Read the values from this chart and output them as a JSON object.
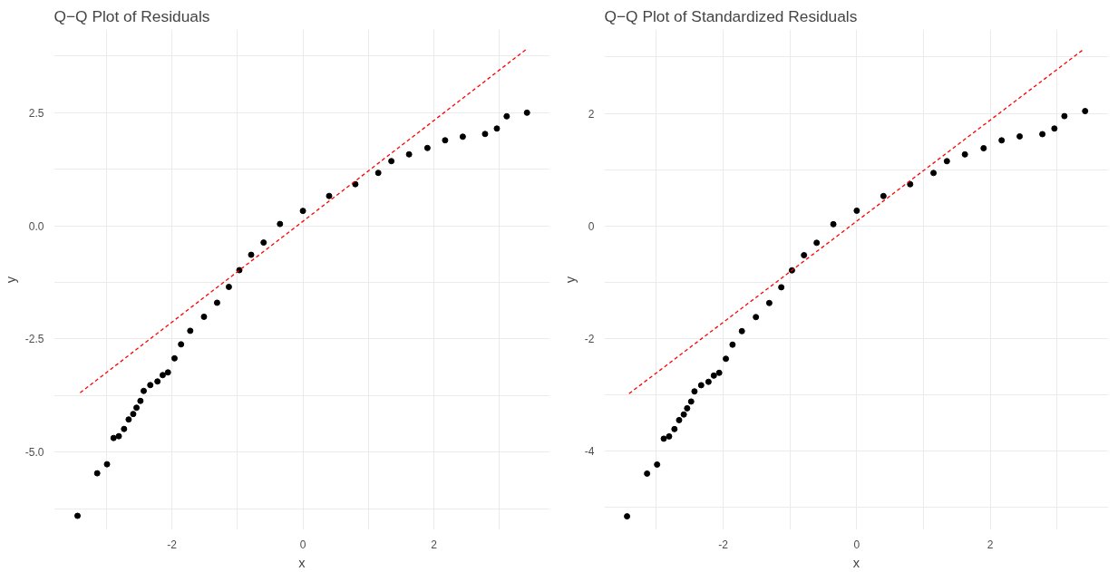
{
  "chart_data": [
    {
      "type": "scatter",
      "title": "Q−Q Plot of Residuals",
      "xlabel": "x",
      "ylabel": "y",
      "xlim": [
        -3.8,
        3.77
      ],
      "ylim": [
        -6.72,
        4.34
      ],
      "xticks": [
        {
          "value": -3,
          "label": null
        },
        -2,
        {
          "value": -1,
          "label": null
        },
        0,
        {
          "value": 1,
          "label": null
        },
        2,
        {
          "value": 3,
          "label": null
        }
      ],
      "yticks": [
        {
          "value": -6.25,
          "label": null
        },
        {
          "value": -5,
          "label": "-5.0"
        },
        {
          "value": -3.75,
          "label": null
        },
        {
          "value": -2.5,
          "label": "-2.5"
        },
        {
          "value": -1.25,
          "label": null
        },
        {
          "value": 0,
          "label": "0.0"
        },
        {
          "value": 1.25,
          "label": null
        },
        {
          "value": 2.5,
          "label": "2.5"
        },
        {
          "value": 3.75,
          "label": null
        }
      ],
      "grid": true,
      "series": [
        {
          "marker": "circle",
          "color": "#000000",
          "x": [
            -3.44,
            -3.14,
            -2.99,
            -2.89,
            -2.81,
            -2.73,
            -2.66,
            -2.59,
            -2.54,
            -2.48,
            -2.43,
            -2.33,
            -2.22,
            -2.14,
            -2.06,
            -1.96,
            -1.86,
            -1.72,
            -1.51,
            -1.31,
            -1.13,
            -0.97,
            -0.79,
            -0.6,
            -0.35,
            0,
            0.4,
            0.8,
            1.15,
            1.35,
            1.62,
            1.9,
            2.17,
            2.44,
            2.78,
            2.96,
            3.11,
            3.42
          ],
          "values": [
            -6.41,
            -5.47,
            -5.27,
            -4.69,
            -4.65,
            -4.49,
            -4.28,
            -4.16,
            -4.02,
            -3.87,
            -3.65,
            -3.52,
            -3.44,
            -3.3,
            -3.24,
            -2.93,
            -2.62,
            -2.32,
            -2.01,
            -1.7,
            -1.35,
            -0.98,
            -0.64,
            -0.37,
            0.04,
            0.33,
            0.66,
            0.92,
            1.17,
            1.43,
            1.58,
            1.72,
            1.89,
            1.97,
            2.03,
            2.15,
            2.42,
            2.5
          ]
        },
        {
          "type": "line",
          "color": "#ff0000",
          "line_style": "dashed",
          "x": [
            -3.4,
            3.4
          ],
          "values": [
            -3.69,
            3.89
          ]
        }
      ]
    },
    {
      "type": "scatter",
      "title": "Q−Q Plot of Standardized Residuals",
      "xlabel": "x",
      "ylabel": "y",
      "xlim": [
        -3.78,
        3.77
      ],
      "ylim": [
        -5.4,
        3.49
      ],
      "xticks": [
        {
          "value": -3,
          "label": null
        },
        -2,
        {
          "value": -1,
          "label": null
        },
        0,
        {
          "value": 1,
          "label": null
        },
        2,
        {
          "value": 3,
          "label": null
        }
      ],
      "yticks": [
        {
          "value": -5,
          "label": null
        },
        -4,
        {
          "value": -3,
          "label": null
        },
        -2,
        {
          "value": -1,
          "label": null
        },
        0,
        {
          "value": 1,
          "label": null
        },
        2,
        {
          "value": 3,
          "label": null
        }
      ],
      "grid": true,
      "series": [
        {
          "marker": "circle",
          "color": "#000000",
          "x": [
            -3.44,
            -3.14,
            -2.99,
            -2.89,
            -2.81,
            -2.73,
            -2.66,
            -2.59,
            -2.54,
            -2.48,
            -2.43,
            -2.33,
            -2.22,
            -2.14,
            -2.06,
            -1.96,
            -1.86,
            -1.72,
            -1.51,
            -1.31,
            -1.13,
            -0.97,
            -0.79,
            -0.6,
            -0.35,
            0,
            0.4,
            0.8,
            1.15,
            1.35,
            1.62,
            1.9,
            2.17,
            2.44,
            2.78,
            2.96,
            3.11,
            3.42
          ],
          "values": [
            -5.16,
            -4.4,
            -4.24,
            -3.78,
            -3.74,
            -3.61,
            -3.45,
            -3.35,
            -3.24,
            -3.12,
            -2.94,
            -2.83,
            -2.77,
            -2.66,
            -2.61,
            -2.36,
            -2.11,
            -1.87,
            -1.62,
            -1.37,
            -1.09,
            -0.79,
            -0.52,
            -0.3,
            0.03,
            0.27,
            0.53,
            0.74,
            0.94,
            1.15,
            1.27,
            1.38,
            1.52,
            1.59,
            1.63,
            1.73,
            1.95,
            2.04
          ]
        },
        {
          "type": "line",
          "color": "#ff0000",
          "line_style": "dashed",
          "x": [
            -3.41,
            3.39
          ],
          "values": [
            -2.98,
            3.13
          ]
        }
      ]
    }
  ]
}
